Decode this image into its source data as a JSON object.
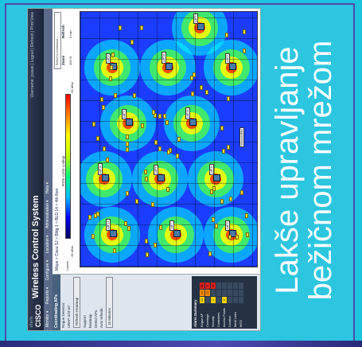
{
  "app": {
    "logo_text": "CISCO",
    "logo_dots": "ılıılı",
    "title": "Wireless Control System",
    "header_links": "Username: jcasas | Logout | Refresh | Print View"
  },
  "menu": {
    "items": [
      "Monitor ▾",
      "Reports ▾",
      "Configure ▾",
      "Location ▾",
      "Administration ▾",
      "Help ▾"
    ]
  },
  "sidebar": {
    "title": "Coordinating APs",
    "lines": [
      "Rogue Detector",
      "LWAP-423-w7"
    ],
    "refresh_button": "Refresh Heatmap",
    "info_lines": [
      "Support",
      "heatmap",
      "Detect APs"
    ],
    "interval_label": "Auto refresh",
    "interval_value": "15 Minutes",
    "alarm_title": "Alarm Summary",
    "alarms": [
      {
        "label": "Rogue AP",
        "cells": [
          "23",
          "14",
          "90"
        ]
      },
      {
        "label": "Coverage",
        "cells": [
          "",
          "12",
          "3"
        ]
      },
      {
        "label": "Security",
        "cells": [
          "1",
          "",
          "40"
        ]
      },
      {
        "label": "Controllers",
        "cells": [
          "",
          "",
          ""
        ]
      },
      {
        "label": "Access Points",
        "cells": [
          "2",
          "",
          ""
        ]
      },
      {
        "label": "Location",
        "cells": [
          "",
          "",
          ""
        ]
      },
      {
        "label": "Mesh Links",
        "cells": [
          "",
          "",
          ""
        ]
      },
      {
        "label": "WCS",
        "cells": [
          "",
          "",
          ""
        ]
      }
    ]
  },
  "main": {
    "breadcrumb": "Maps > Cisco SJ > Bldg 1 > BLD 14 > 4th floor",
    "command_select": "-- Select a command --",
    "go_button": "GO",
    "legend_title": "RSSI Color Lookup",
    "legend_min": "-35 dBm",
    "legend_max": "-90 dBm",
    "layers_tab": "Layers",
    "zoom_label": "Zoom",
    "zoom_value": "100 %",
    "refresh_label": "Refresh",
    "refresh_value": "5 min",
    "full_screen": "Full Screen",
    "ap_labels": [
      "LAP14",
      "LAP7",
      "LAP3",
      "LAP21",
      "LAP9",
      "LAP11",
      "LAP5",
      "LAP18",
      "LAP2",
      "LAP16",
      "LAP4",
      "LAP8"
    ],
    "rogue_label": "UnknownMini"
  },
  "caption": {
    "line1": "Lakše upravljanje",
    "line2": "bežičnom mrežom"
  }
}
